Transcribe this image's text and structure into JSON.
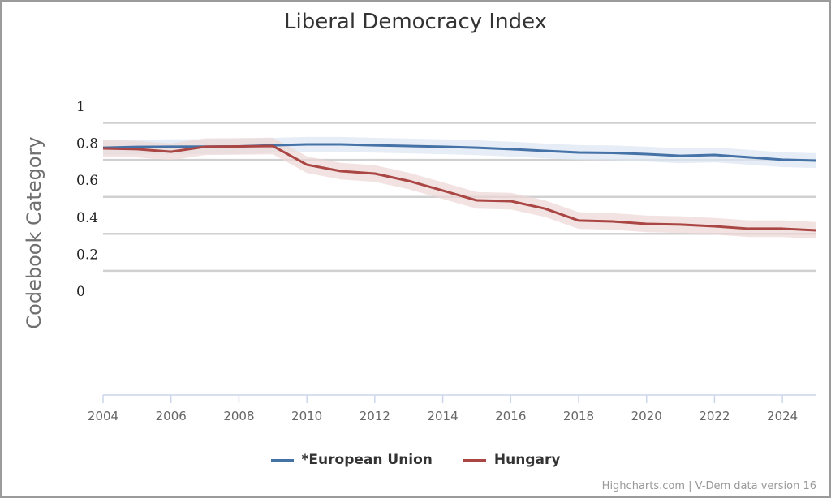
{
  "chart_data": {
    "type": "line",
    "title": "Liberal Democracy Index",
    "xlabel": "",
    "ylabel": "Codebook Category",
    "x": [
      2004,
      2005,
      2006,
      2007,
      2008,
      2009,
      2010,
      2011,
      2012,
      2013,
      2014,
      2015,
      2016,
      2017,
      2018,
      2019,
      2020,
      2021,
      2022,
      2023,
      2024,
      2025
    ],
    "xlim": [
      2004,
      2025
    ],
    "ylim": [
      0,
      1
    ],
    "x_tick_labels": [
      "2004",
      "2006",
      "2008",
      "2010",
      "2012",
      "2014",
      "2016",
      "2018",
      "2020",
      "2022",
      "2024"
    ],
    "y_tick_labels": [
      "1",
      "0.8",
      "0.6",
      "0.4",
      "0.2",
      "0"
    ],
    "grid": true,
    "legend_position": "bottom-center",
    "series": [
      {
        "name": "*European Union",
        "color": "#4572A7",
        "band_color": "#dce6f2",
        "values": [
          0.776,
          0.78,
          0.781,
          0.782,
          0.783,
          0.789,
          0.794,
          0.794,
          0.789,
          0.785,
          0.781,
          0.776,
          0.768,
          0.759,
          0.75,
          0.748,
          0.741,
          0.732,
          0.737,
          0.724,
          0.711,
          0.706
        ],
        "band_halfwidth": 0.04
      },
      {
        "name": "Hungary",
        "color": "#AA4643",
        "band_color": "#ecd7d6",
        "values": [
          0.772,
          0.768,
          0.754,
          0.781,
          0.783,
          0.785,
          0.684,
          0.649,
          0.636,
          0.596,
          0.544,
          0.491,
          0.487,
          0.447,
          0.382,
          0.377,
          0.364,
          0.36,
          0.351,
          0.338,
          0.338,
          0.329
        ],
        "band_halfwidth": 0.045
      }
    ]
  },
  "credits": "Highcharts.com | V-Dem data version 16"
}
